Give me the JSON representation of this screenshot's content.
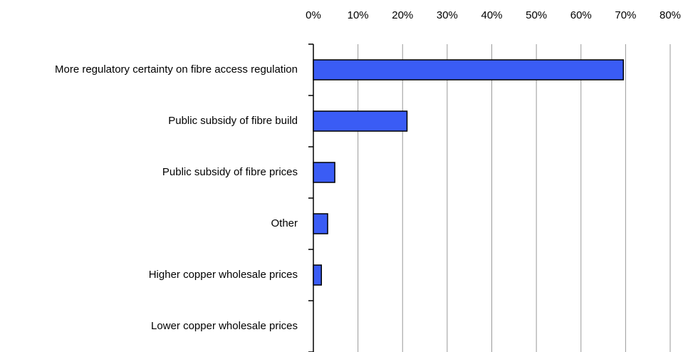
{
  "chart_data": {
    "type": "bar",
    "orientation": "horizontal",
    "categories": [
      "More regulatory certainty on fibre access regulation",
      "Public subsidy of fibre build",
      "Public subsidy of fibre prices",
      "Other",
      "Higher copper wholesale prices",
      "Lower copper wholesale prices"
    ],
    "values": [
      69.5,
      21,
      4.8,
      3.2,
      1.8,
      0
    ],
    "color": "#3a5cf5",
    "xlim": [
      0,
      80
    ],
    "xticks": [
      {
        "value": 0,
        "label": "0%"
      },
      {
        "value": 10,
        "label": "10%"
      },
      {
        "value": 20,
        "label": "20%"
      },
      {
        "value": 30,
        "label": "30%"
      },
      {
        "value": 40,
        "label": "40%"
      },
      {
        "value": 50,
        "label": "50%"
      },
      {
        "value": 60,
        "label": "60%"
      },
      {
        "value": 70,
        "label": "70%"
      },
      {
        "value": 80,
        "label": "80%"
      }
    ],
    "grid": true
  }
}
